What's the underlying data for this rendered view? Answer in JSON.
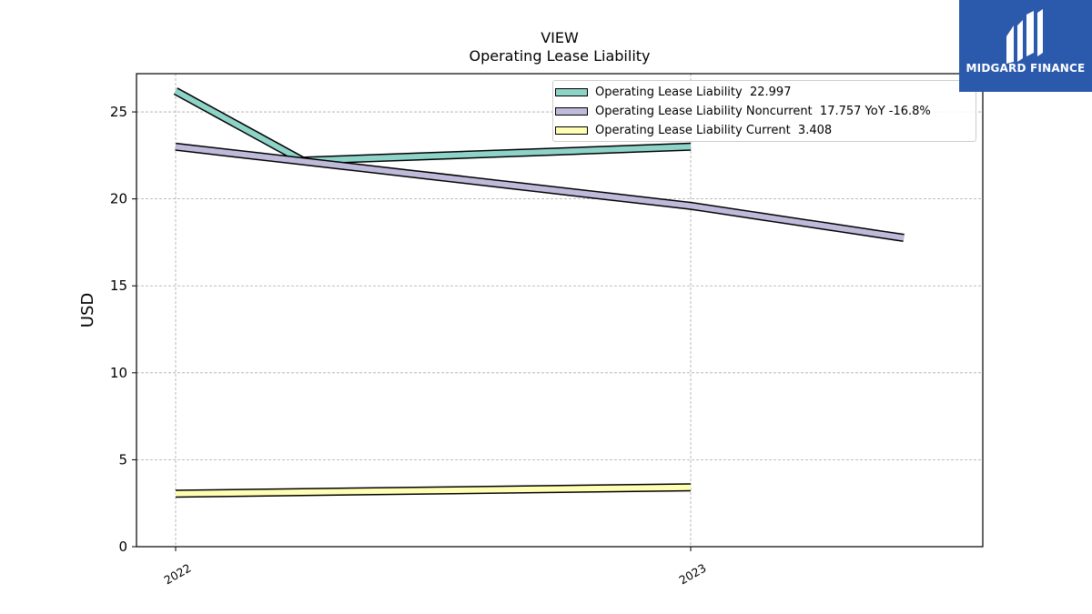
{
  "title": {
    "line1": "VIEW",
    "line2": "Operating Lease Liability"
  },
  "logo": {
    "text": "MIDGARD FINANCE",
    "icon": "midgard-m-logo-icon",
    "color": "#2b5aad"
  },
  "legend": {
    "placement": "top-right",
    "items": [
      {
        "label": "Operating Lease Liability  22.997",
        "color": "#8dd3c7"
      },
      {
        "label": "Operating Lease Liability Noncurrent  17.757 YoY -16.8%",
        "color": "#bebada"
      },
      {
        "label": "Operating Lease Liability Current  3.408",
        "color": "#ffffb3"
      }
    ]
  },
  "chart_data": {
    "type": "line",
    "ylabel": "USD",
    "xlabel": "",
    "ylim": [
      0,
      27.2
    ],
    "yticks": [
      0,
      5,
      10,
      15,
      20,
      25
    ],
    "xticks": [
      "2022",
      "2023"
    ],
    "grid": true,
    "series": [
      {
        "name": "Operating Lease Liability",
        "color": "#8dd3c7",
        "points": [
          {
            "x": "2022",
            "y": 26.2
          },
          {
            "x": "2022-04",
            "y": 22.2
          },
          {
            "x": "2023",
            "y": 23.0
          }
        ]
      },
      {
        "name": "Operating Lease Liability Noncurrent",
        "color": "#bebada",
        "points": [
          {
            "x": "2022",
            "y": 23.0
          },
          {
            "x": "2023",
            "y": 19.6
          },
          {
            "x": "2023-06",
            "y": 17.757
          }
        ]
      },
      {
        "name": "Operating Lease Liability Current",
        "color": "#ffffb3",
        "points": [
          {
            "x": "2022",
            "y": 3.05
          },
          {
            "x": "2023",
            "y": 3.408
          }
        ]
      }
    ]
  }
}
